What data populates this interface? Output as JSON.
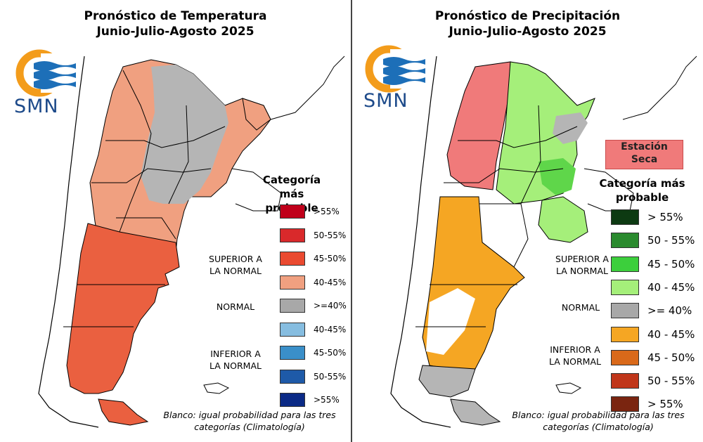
{
  "left": {
    "title_line1": "Pronóstico de Temperatura",
    "title_line2": "Junio-Julio-Agosto 2025",
    "logo_text": "SMN",
    "legend_title_line1": "Categoría más",
    "legend_title_line2": "probable",
    "superior_line1": "SUPERIOR A",
    "superior_line2": "LA NORMAL",
    "normal": "NORMAL",
    "inferior_line1": "INFERIOR A",
    "inferior_line2": "LA NORMAL",
    "legend": [
      {
        "label": ">55%",
        "color": "#c0001a"
      },
      {
        "label": "50-55%",
        "color": "#d9292b"
      },
      {
        "label": "45-50%",
        "color": "#ea4a30"
      },
      {
        "label": "40-45%",
        "color": "#f0a080"
      },
      {
        "label": ">=40%",
        "color": "#a8a8a8"
      },
      {
        "label": "40-45%",
        "color": "#86bde0"
      },
      {
        "label": "45-50%",
        "color": "#3a8fc9"
      },
      {
        "label": "50-55%",
        "color": "#1e5aa8"
      },
      {
        "label": ">55%",
        "color": "#0b2a86"
      }
    ],
    "note_line1": "Blanco: igual probabilidad para las tres",
    "note_line2": "categorías (Climatología)"
  },
  "right": {
    "title_line1": "Pronóstico de Precipitación",
    "title_line2": "Junio-Julio-Agosto 2025",
    "logo_text": "SMN",
    "dry_season_line1": "Estación",
    "dry_season_line2": "Seca",
    "legend_title_line1": "Categoría más",
    "legend_title_line2": "probable",
    "superior_line1": "SUPERIOR A",
    "superior_line2": "LA NORMAL",
    "normal": "NORMAL",
    "inferior_line1": "INFERIOR A",
    "inferior_line2": "LA NORMAL",
    "legend": [
      {
        "label": "> 55%",
        "color": "#0d3a12"
      },
      {
        "label": "50 - 55%",
        "color": "#2a8a2e"
      },
      {
        "label": "45 - 50%",
        "color": "#3ccf3c"
      },
      {
        "label": "40 - 45%",
        "color": "#a5ef7a"
      },
      {
        "label": ">= 40%",
        "color": "#a8a8a8"
      },
      {
        "label": "40 - 45%",
        "color": "#f5a623"
      },
      {
        "label": "45 - 50%",
        "color": "#d9691a"
      },
      {
        "label": "50 - 55%",
        "color": "#c0361a"
      },
      {
        "label": "> 55%",
        "color": "#7a2510"
      }
    ],
    "note_line1": "Blanco: igual probabilidad para las tres",
    "note_line2": "categorías (Climatología)"
  },
  "colors": {
    "temp_warm": "#f0a080",
    "temp_warmer": "#ea6040",
    "normal_gray": "#b5b5b5",
    "dry_red": "#f07a7a",
    "wet_green": "#a5ef7a",
    "wet_green_dark": "#5fd64a",
    "dry_orange": "#f5a623",
    "logo_orange": "#f39c1b",
    "logo_blue": "#1d6fb8"
  }
}
